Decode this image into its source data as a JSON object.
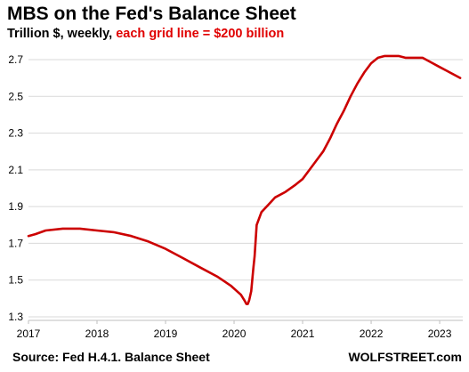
{
  "chart_data": {
    "type": "line",
    "title": "MBS on the Fed's Balance Sheet",
    "subtitle_plain": "Trillion $, weekly, ",
    "subtitle_accent": "each grid line = $200 billion",
    "source": "Source: Fed H.4.1. Balance Sheet",
    "brand": "WOLFSTREET.com",
    "xlabel": "",
    "ylabel": "",
    "xlim": [
      2017.0,
      2023.35
    ],
    "ylim": [
      1.3,
      2.8
    ],
    "x_ticks": [
      2017,
      2018,
      2019,
      2020,
      2021,
      2022,
      2023
    ],
    "x_tick_labels": [
      "2017",
      "2018",
      "2019",
      "2020",
      "2021",
      "2022",
      "2023"
    ],
    "y_ticks": [
      1.3,
      1.5,
      1.7,
      1.9,
      2.1,
      2.3,
      2.5,
      2.7
    ],
    "y_tick_labels": [
      "1.3",
      "1.5",
      "1.7",
      "1.9",
      "2.1",
      "2.3",
      "2.5",
      "2.7"
    ],
    "grid": true,
    "line_color": "#cc0000",
    "series": [
      {
        "x": [
          2017.0,
          2017.1,
          2017.25,
          2017.5,
          2017.75,
          2018.0,
          2018.25,
          2018.5,
          2018.75,
          2019.0,
          2019.25,
          2019.5,
          2019.75,
          2019.95,
          2020.1,
          2020.15,
          2020.18,
          2020.2,
          2020.22,
          2020.25,
          2020.28,
          2020.3,
          2020.33,
          2020.4,
          2020.5,
          2020.6,
          2020.75,
          2020.9,
          2021.0,
          2021.1,
          2021.2,
          2021.3,
          2021.4,
          2021.5,
          2021.6,
          2021.7,
          2021.8,
          2021.9,
          2022.0,
          2022.1,
          2022.2,
          2022.25,
          2022.4,
          2022.5,
          2022.6,
          2022.75,
          2022.9,
          2023.0,
          2023.1,
          2023.2,
          2023.3
        ],
        "y": [
          1.74,
          1.75,
          1.77,
          1.78,
          1.78,
          1.77,
          1.76,
          1.74,
          1.71,
          1.67,
          1.62,
          1.57,
          1.52,
          1.47,
          1.42,
          1.39,
          1.37,
          1.37,
          1.39,
          1.44,
          1.56,
          1.63,
          1.8,
          1.87,
          1.91,
          1.95,
          1.98,
          2.02,
          2.05,
          2.1,
          2.15,
          2.2,
          2.27,
          2.35,
          2.42,
          2.5,
          2.57,
          2.63,
          2.68,
          2.71,
          2.72,
          2.72,
          2.72,
          2.71,
          2.71,
          2.71,
          2.68,
          2.66,
          2.64,
          2.62,
          2.6
        ]
      }
    ]
  }
}
